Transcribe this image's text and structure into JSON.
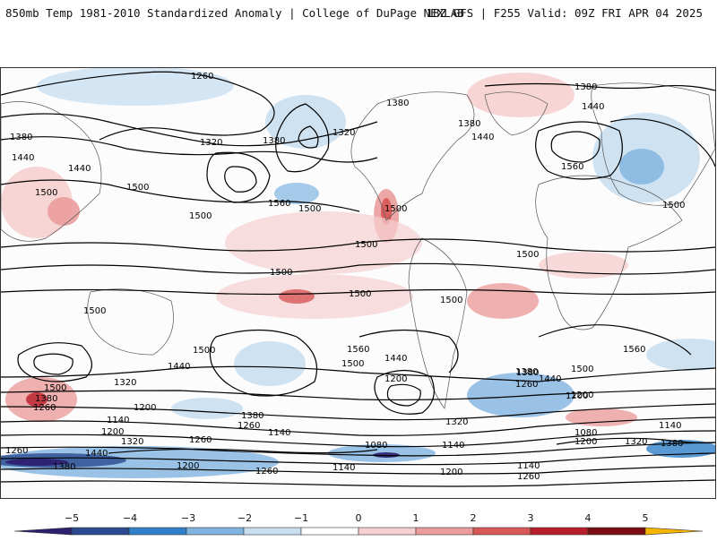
{
  "header": {
    "title_left": "850mb Temp 1981-2010 Standardized Anomaly | College of DuPage NEXLAB",
    "title_right": "18Z GFS | F255 Valid: 09Z FRI APR 04 2025"
  },
  "map": {
    "contour_labels": [
      "1260",
      "1380",
      "1380",
      "1380",
      "1320",
      "1380",
      "1320",
      "1440",
      "1440",
      "1380",
      "1440",
      "1440",
      "1500",
      "1500",
      "1500",
      "1500",
      "1560",
      "1500",
      "1560",
      "1500",
      "1500",
      "1500",
      "1500",
      "1500",
      "1500",
      "1500",
      "1500",
      "1560",
      "1500",
      "1440",
      "1560",
      "1200",
      "1380",
      "1260",
      "1200",
      "1320",
      "1140",
      "1260",
      "1380",
      "1440",
      "1200",
      "1320",
      "1260",
      "1380",
      "1320",
      "1500",
      "1440",
      "1260",
      "1200",
      "1140",
      "1080",
      "1200",
      "1380",
      "1140",
      "1260",
      "1200",
      "1080",
      "1140",
      "1140",
      "1200",
      "1140",
      "1260",
      "1320",
      "1380",
      "1440",
      "1380",
      "1260",
      "1500",
      "1200"
    ]
  },
  "colorbar": {
    "tick_labels": [
      "−5",
      "−4",
      "−3",
      "−2",
      "−1",
      "0",
      "1",
      "2",
      "3",
      "4",
      "5"
    ],
    "colors": [
      "#2d1e6e",
      "#2b4a8f",
      "#2f7fc9",
      "#7fb3e0",
      "#c9dff0",
      "#ffffff",
      "#f6d0d0",
      "#eb9c9c",
      "#d85757",
      "#b81d2a",
      "#7a0d12",
      "#f5b400"
    ]
  }
}
